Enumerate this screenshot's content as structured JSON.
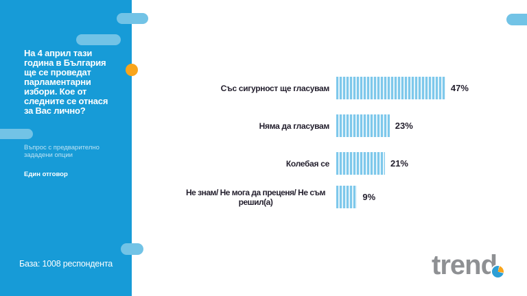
{
  "sidebar": {
    "title": "На 4 април тази година в България ще се проведат парламентарни избори. Кое от следните се отнася за Вас лично?",
    "subtitle": "Въпрос с предварително зададени опции",
    "answer_note": "Един отговор",
    "base_note": "База: 1008 респондента"
  },
  "chart_data": {
    "type": "bar",
    "orientation": "horizontal",
    "title": "",
    "categories": [
      "Със сигурност ще гласувам",
      "Няма да гласувам",
      "Колебая се",
      "Не знам/ Не мога да преценя/ Не съм\nрешил(а)"
    ],
    "values": [
      47,
      23,
      21,
      9
    ],
    "value_labels": [
      "47%",
      "23%",
      "21%",
      "9%"
    ],
    "xlim": [
      0,
      100
    ],
    "grid": false,
    "legend": false,
    "bar_style": "striped-vertical"
  },
  "logo": {
    "text": "trend"
  },
  "colors": {
    "sidebar": "#179bd7",
    "pill": "#72c3e6",
    "orange": "#f9a51b",
    "bar_stripe": "#7ec8eb",
    "bar_stripe_gap": "#e4f4fb",
    "text_dark": "#24202e",
    "logo_gray": "#8e9093",
    "pie_blue": "#2d9fd6"
  }
}
